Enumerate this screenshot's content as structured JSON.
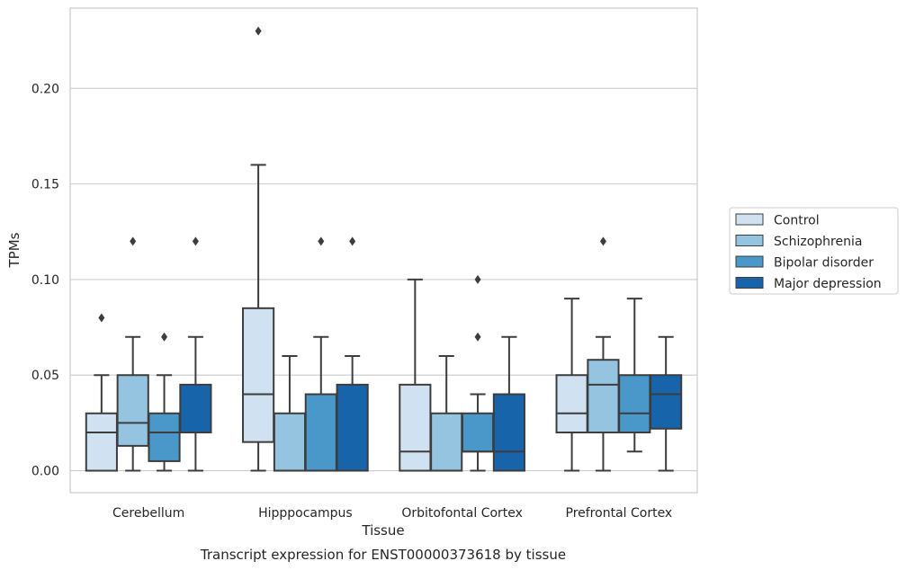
{
  "chart_data": {
    "type": "box",
    "xlabel": "Tissue",
    "ylabel": "TPMs",
    "caption": "Transcript expression for ENST00000373618 by tissue",
    "ylim": [
      -0.0115,
      0.242
    ],
    "yticks": [
      0.0,
      0.05,
      0.1,
      0.15,
      0.2
    ],
    "ytick_labels": [
      "0.00",
      "0.05",
      "0.10",
      "0.15",
      "0.20"
    ],
    "grid": "horizontal",
    "legend_position": "right",
    "categories": [
      "Cerebellum",
      "Hipppocampus",
      "Orbitofontal Cortex",
      "Prefrontal Cortex"
    ],
    "series": [
      {
        "name": "Control",
        "color": "#d0e1f2",
        "boxes": [
          {
            "whislo": 0.0,
            "q1": 0.0,
            "med": 0.02,
            "q3": 0.03,
            "whishi": 0.05,
            "fliers": [
              0.08
            ]
          },
          {
            "whislo": 0.0,
            "q1": 0.015,
            "med": 0.04,
            "q3": 0.085,
            "whishi": 0.16,
            "fliers": [
              0.23
            ]
          },
          {
            "whislo": 0.0,
            "q1": 0.0,
            "med": 0.01,
            "q3": 0.045,
            "whishi": 0.1,
            "fliers": []
          },
          {
            "whislo": 0.0,
            "q1": 0.02,
            "med": 0.03,
            "q3": 0.05,
            "whishi": 0.09,
            "fliers": []
          }
        ]
      },
      {
        "name": "Schizophrenia",
        "color": "#94c4df",
        "boxes": [
          {
            "whislo": 0.0,
            "q1": 0.013,
            "med": 0.025,
            "q3": 0.05,
            "whishi": 0.07,
            "fliers": [
              0.12
            ]
          },
          {
            "whislo": 0.0,
            "q1": 0.0,
            "med": 0.0,
            "q3": 0.03,
            "whishi": 0.06,
            "fliers": []
          },
          {
            "whislo": 0.0,
            "q1": 0.0,
            "med": 0.0,
            "q3": 0.03,
            "whishi": 0.06,
            "fliers": []
          },
          {
            "whislo": 0.0,
            "q1": 0.02,
            "med": 0.045,
            "q3": 0.058,
            "whishi": 0.07,
            "fliers": [
              0.12
            ]
          }
        ]
      },
      {
        "name": "Bipolar disorder",
        "color": "#4a98c9",
        "boxes": [
          {
            "whislo": 0.0,
            "q1": 0.005,
            "med": 0.02,
            "q3": 0.03,
            "whishi": 0.05,
            "fliers": [
              0.07
            ]
          },
          {
            "whislo": 0.0,
            "q1": 0.0,
            "med": 0.0,
            "q3": 0.04,
            "whishi": 0.07,
            "fliers": [
              0.12
            ]
          },
          {
            "whislo": 0.0,
            "q1": 0.01,
            "med": 0.01,
            "q3": 0.03,
            "whishi": 0.04,
            "fliers": [
              0.07,
              0.1
            ]
          },
          {
            "whislo": 0.01,
            "q1": 0.02,
            "med": 0.03,
            "q3": 0.05,
            "whishi": 0.09,
            "fliers": []
          }
        ]
      },
      {
        "name": "Major depression",
        "color": "#1764ab",
        "boxes": [
          {
            "whislo": 0.0,
            "q1": 0.02,
            "med": 0.02,
            "q3": 0.045,
            "whishi": 0.07,
            "fliers": [
              0.12
            ]
          },
          {
            "whislo": 0.0,
            "q1": 0.0,
            "med": 0.0,
            "q3": 0.045,
            "whishi": 0.06,
            "fliers": [
              0.12
            ]
          },
          {
            "whislo": 0.0,
            "q1": 0.0,
            "med": 0.01,
            "q3": 0.04,
            "whishi": 0.07,
            "fliers": []
          },
          {
            "whislo": 0.0,
            "q1": 0.022,
            "med": 0.04,
            "q3": 0.05,
            "whishi": 0.07,
            "fliers": []
          }
        ]
      }
    ]
  }
}
